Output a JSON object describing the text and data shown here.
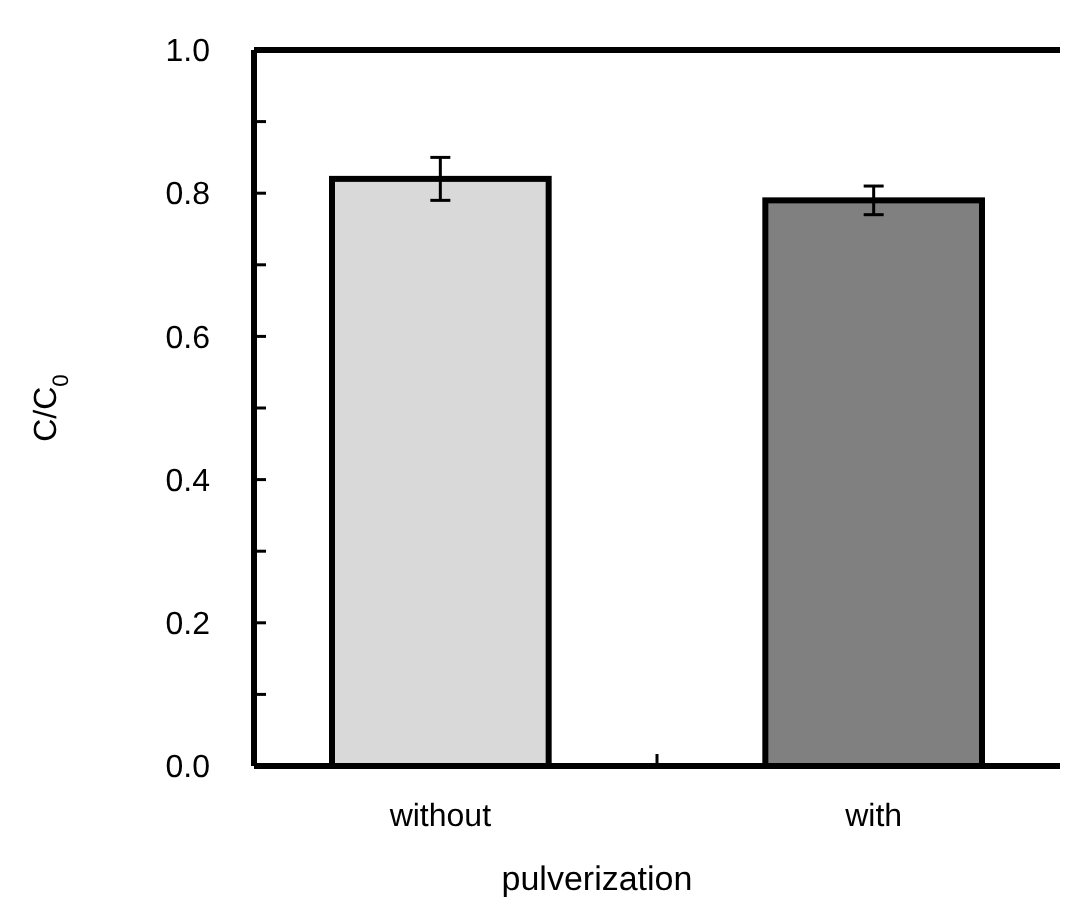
{
  "chart_data": {
    "type": "bar",
    "xlabel": "pulverization",
    "ylabel": "C/C$_{0}$",
    "categories": [
      "without",
      "with"
    ],
    "values": [
      0.82,
      0.79
    ],
    "errors": [
      0.03,
      0.02
    ],
    "colors": [
      "#d9d9d9",
      "#808080"
    ],
    "ylim": [
      0,
      1
    ],
    "yticks": [
      {
        "value": 0,
        "label": "0.0"
      },
      {
        "value": 0.1,
        "label": null
      },
      {
        "value": 0.2,
        "label": "0.2"
      },
      {
        "value": 0.3,
        "label": null
      },
      {
        "value": 0.4,
        "label": "0.4"
      },
      {
        "value": 0.5,
        "label": null
      },
      {
        "value": 0.6,
        "label": "0.6"
      },
      {
        "value": 0.7,
        "label": null
      },
      {
        "value": 0.8,
        "label": "0.8"
      },
      {
        "value": 0.9,
        "label": null
      },
      {
        "value": 1,
        "label": "1.0"
      }
    ]
  }
}
